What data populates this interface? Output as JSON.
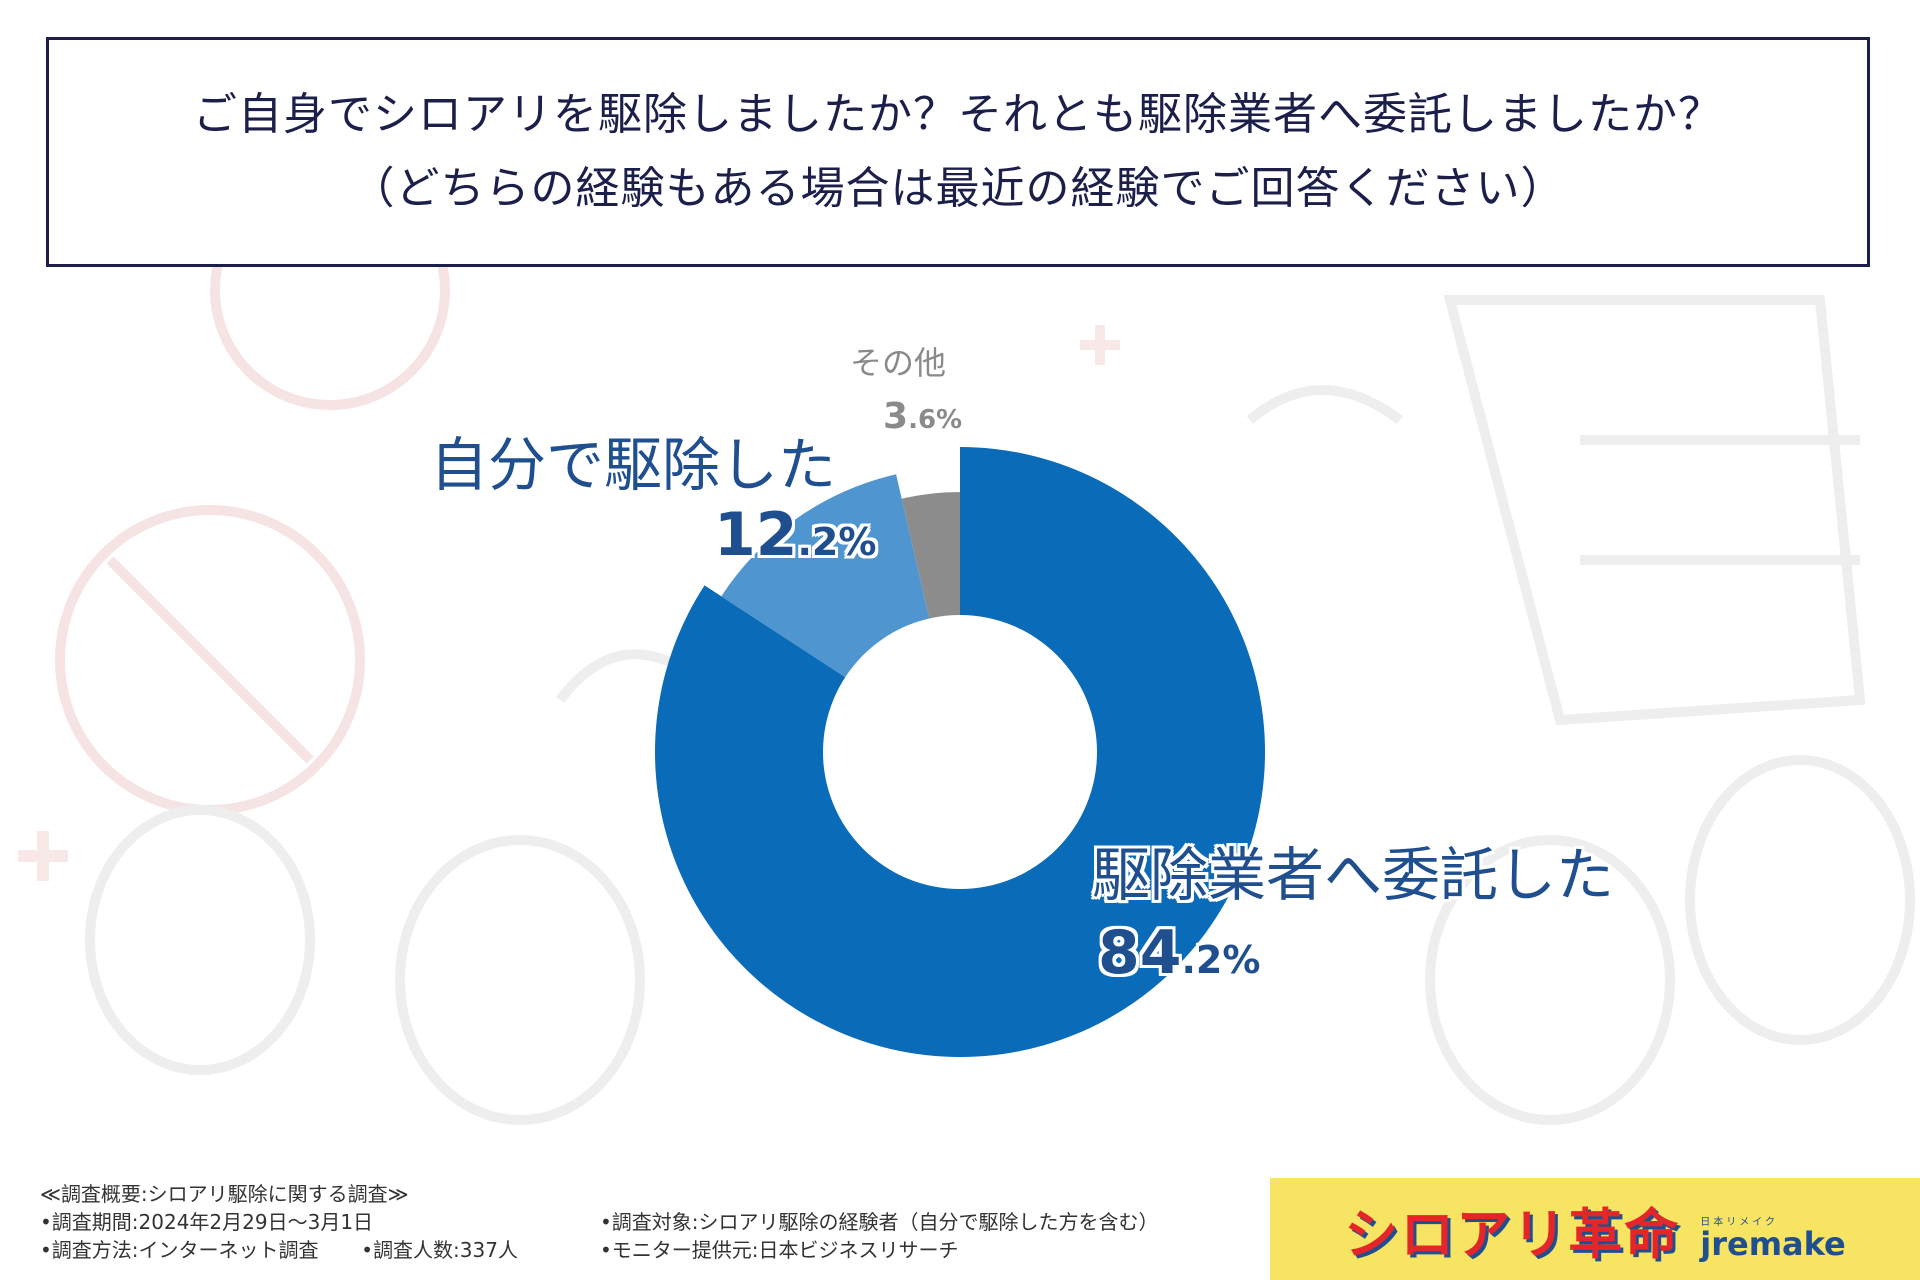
{
  "question": {
    "line1": "ご自身でシロアリを駆除しましたか？それとも駆除業者へ委託しましたか？",
    "line2": "（どちらの経験もある場合は最近の経験でご回答ください）"
  },
  "chart_data": {
    "type": "pie",
    "style": "donut",
    "slices": [
      {
        "label": "駆除業者へ委託した",
        "value": 84.2,
        "pct_main": "84",
        "pct_small": ".2%",
        "color": "#0a6bb8"
      },
      {
        "label": "自分で駆除した",
        "value": 12.2,
        "pct_main": "12",
        "pct_small": ".2%",
        "color": "#4f95cf"
      },
      {
        "label": "その他",
        "value": 3.6,
        "pct_main": "3",
        "pct_small": ".6%",
        "color": "#8c8c8c"
      }
    ]
  },
  "footer": {
    "survey_title": "≪調査概要:シロアリ駆除に関する調査≫",
    "period": "•調査期間:2024年2月29日〜3月1日",
    "method": "•調査方法:インターネット調査",
    "respondents": "•調査人数:337人",
    "target": "•調査対象:シロアリ駆除の経験者（自分で駆除した方を含む）",
    "provider": "•モニター提供元:日本ビジネスリサーチ"
  },
  "logo": {
    "main": "シロアリ革命",
    "kana": "日本リメイク",
    "brand": "jremake",
    "colors": {
      "background": "#f7e463",
      "main": "#e4262b",
      "brand": "#1f4f8f"
    }
  }
}
